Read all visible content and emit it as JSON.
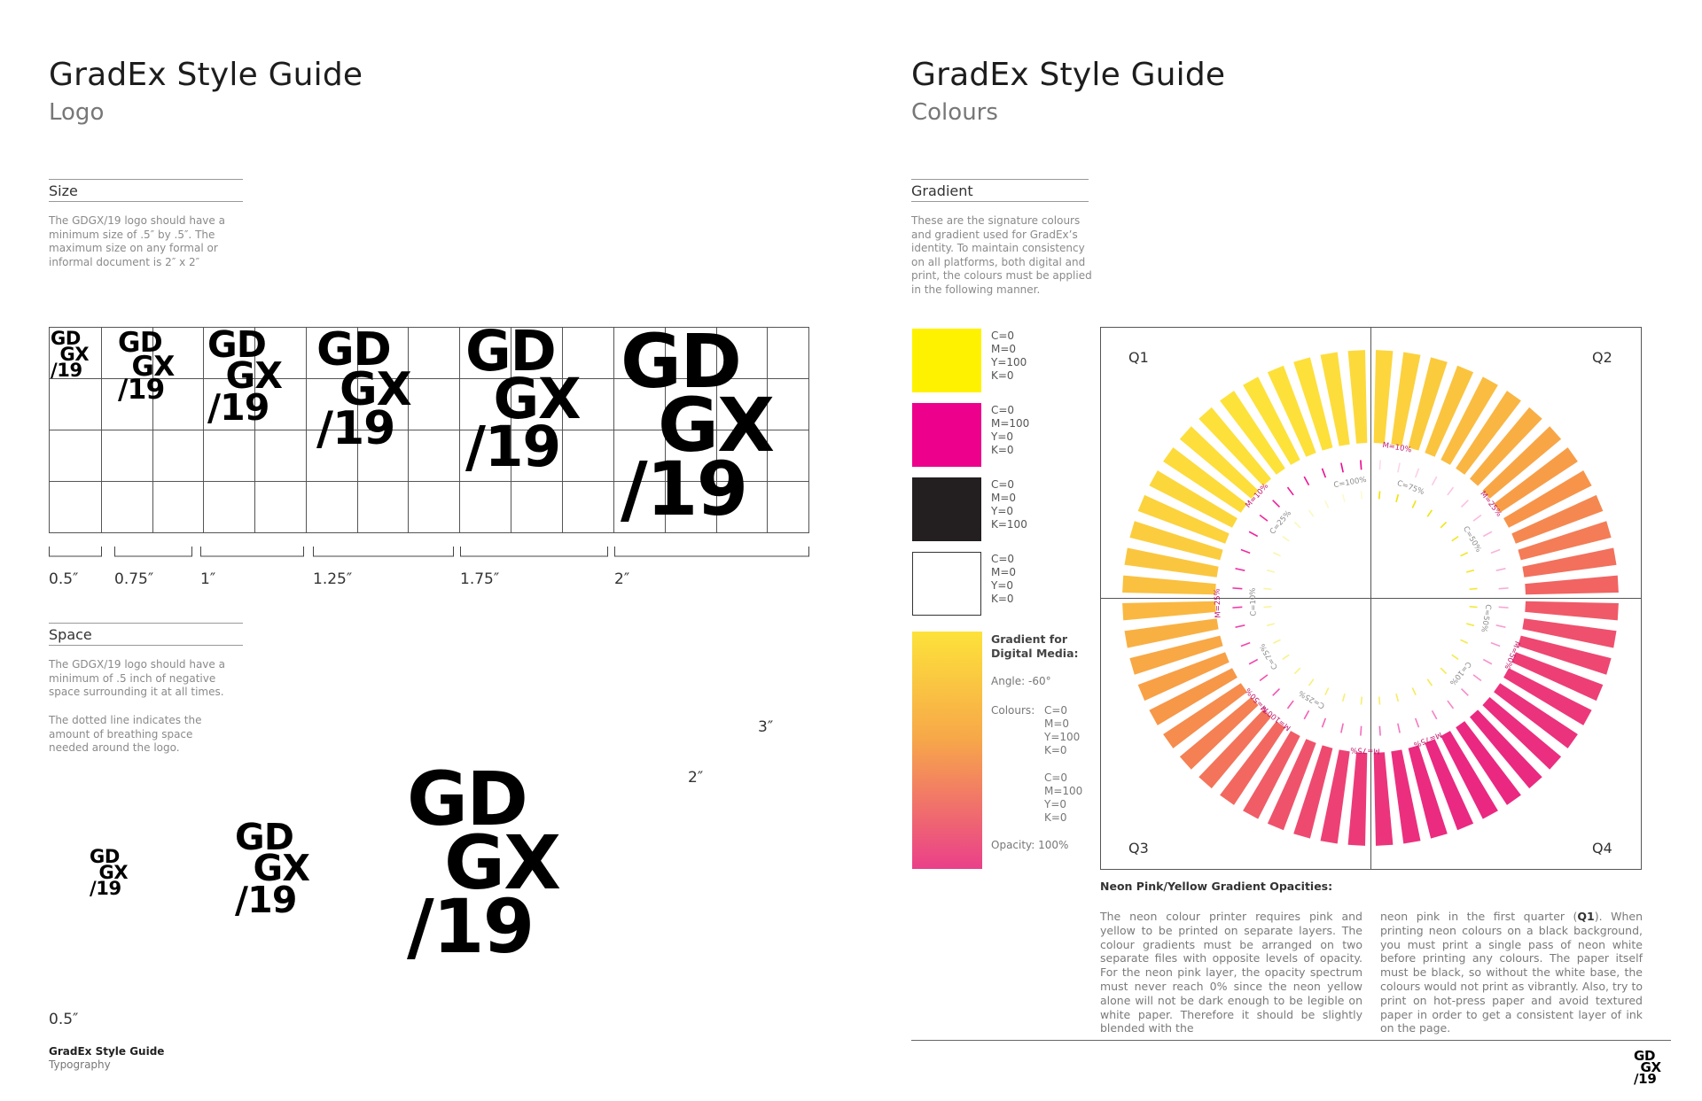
{
  "left": {
    "title": "GradEx Style Guide",
    "subtitle": "Logo",
    "size_section": {
      "heading": "Size",
      "body": "The GDGX/19 logo should have a minimum size of .5″ by .5″. The maximum size on any formal or informal document is 2″ x 2″",
      "dimensions": [
        "0.5″",
        "0.75″",
        "1″",
        "1.25″",
        "1.75″",
        "2″"
      ]
    },
    "space_section": {
      "heading": "Space",
      "body1": "The GDGX/19 logo should have a minimum of .5 inch of negative space surrounding it at all times.",
      "body2": "The dotted line indicates the amount of breathing space needed around the logo.",
      "dim_3": "3″",
      "dim_2": "2″",
      "dim_05": "0.5″"
    },
    "logo": {
      "line1": "GD",
      "line2": "GX",
      "line3": "/19"
    },
    "footer": {
      "title": "GradEx Style Guide",
      "subtitle": "Typography"
    }
  },
  "right": {
    "title": "GradEx Style Guide",
    "subtitle": "Colours",
    "gradient_section": {
      "heading": "Gradient",
      "body": "These are the signature colours and gradient used for GradEx’s identity. To maintain consistency on all platforms, both digital and print, the colours must be applied in the following manner."
    },
    "swatches": [
      {
        "color": "#fff200",
        "values": "C=0\nM=0\nY=100\nK=0"
      },
      {
        "color": "#ec008c",
        "values": "C=0\nM=100\nY=0\nK=0"
      },
      {
        "color": "#231f20",
        "values": "C=0\nM=0\nY=0\nK=100"
      },
      {
        "color": "#ffffff",
        "values": "C=0\nM=0\nY=0\nK=0"
      }
    ],
    "gradient_info": {
      "heading": "Gradient for Digital Media:",
      "angle": "Angle: -60°",
      "colours_label": "Colours:",
      "colours1": "C=0\nM=0\nY=100\nK=0",
      "colours2": "C=0\nM=100\nY=0\nK=0",
      "opacity": "Opacity: 100%"
    },
    "quadrants": [
      "Q1",
      "Q2",
      "Q3",
      "Q4"
    ],
    "ring_labels": {
      "m10": "M=10%",
      "m25": "M=25%",
      "m50": "M=50%",
      "m75": "M=75%",
      "m100": "M=100%",
      "m10b": "M=10%",
      "m25b": "M=25%",
      "m50b": "M=50%",
      "m75b": "M=75%",
      "c100": "C=100%",
      "c75": "C=75%",
      "c50": "C=50%",
      "c25": "C=25%",
      "c10": "C=10%",
      "c50b": "C=50%",
      "c75b": "C=75%",
      "c25b": "C=25%",
      "c10b": "C=10%"
    },
    "neon": {
      "heading": "Neon Pink/Yellow Gradient Opacities:",
      "col1_a": "The neon colour printer requires pink and yellow to be printed on separate layers. The colour gradients must be arranged on two separate files with opposite levels of opacity. For the neon pink layer, the opacity spectrum must never reach 0% since the neon yellow alone will not be dark enough to be legible on white paper. Therefore it should be slightly blended with the",
      "col2_a": "neon pink in the first quarter (",
      "col2_bold": "Q1",
      "col2_b": "). When printing neon colours on a black background, you must print a single pass of neon white before printing any colours. The paper itself must be black, so without the white base, the colours would not print as vibrantly. Also, try to print on hot-press paper and avoid textured paper in order to get a consistent layer of ink on the page."
    },
    "colors": {
      "yellow": "#fff200",
      "pink": "#ec008c",
      "grad_top": "#fde23a",
      "grad_bottom": "#ea3f8a"
    }
  }
}
